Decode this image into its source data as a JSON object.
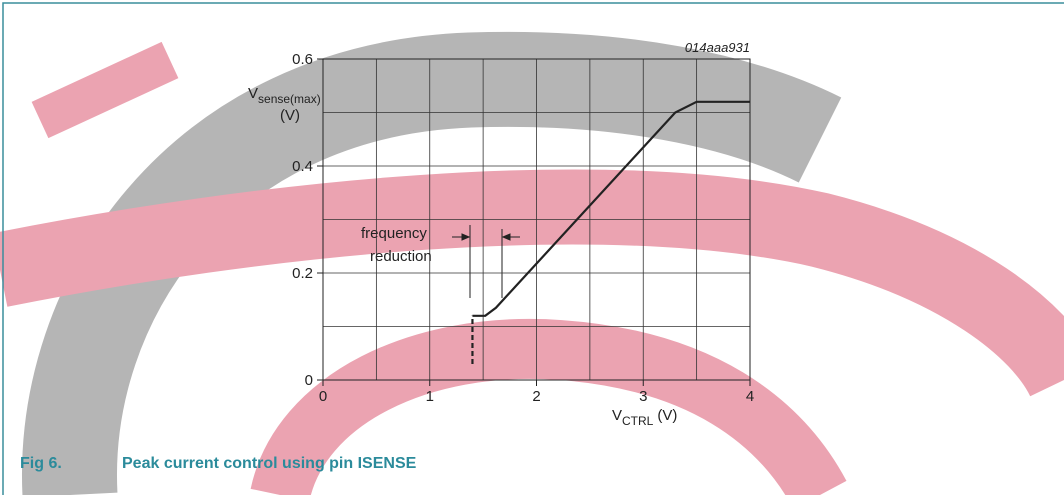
{
  "chart_data": {
    "type": "line",
    "figure_id": "014aaa931",
    "caption_number": "Fig 6.",
    "caption_title": "Peak current control using pin ISENSE",
    "y_label": {
      "main": "V",
      "sub": "sense(max)",
      "unit": "(V)"
    },
    "x_label": {
      "main": "V",
      "sub": "CTRL",
      "unit": "(V)"
    },
    "annotation": {
      "lines": [
        "frequency",
        "reduction"
      ]
    },
    "xlim": [
      0,
      4
    ],
    "ylim": [
      0,
      0.6
    ],
    "xticks": [
      0,
      1,
      2,
      3,
      4
    ],
    "yticks": [
      0,
      0.2,
      0.4,
      0.6
    ],
    "x_grid": [
      0.5,
      1.5,
      2.5,
      3.5
    ],
    "y_grid": [
      0.1,
      0.3,
      0.5
    ],
    "grid": true,
    "series": [
      {
        "color": "#222222",
        "dashed": true,
        "x": [
          1.4,
          1.4
        ],
        "values": [
          0.03,
          0.12
        ]
      },
      {
        "color": "#222222",
        "dashed": false,
        "x": [
          1.4,
          1.52,
          1.62,
          3.3,
          3.5,
          4
        ],
        "values": [
          0.12,
          0.12,
          0.135,
          0.5,
          0.52,
          0.52
        ]
      }
    ]
  }
}
